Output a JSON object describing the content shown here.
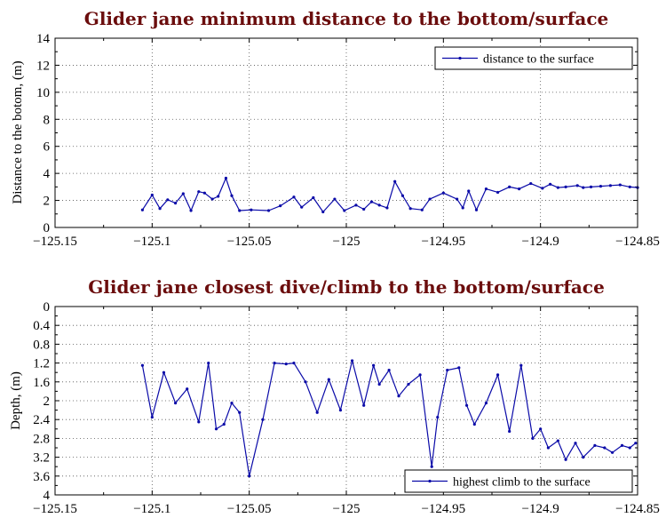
{
  "chart_data": [
    {
      "type": "line",
      "title": "Glider jane minimum distance to the bottom/surface",
      "ylabel": "Distance to the botom, (m)",
      "xlabel": "",
      "xlim": [
        -125.15,
        -124.85
      ],
      "ylim": [
        0,
        14
      ],
      "y_inverted": false,
      "grid": true,
      "legend_position": "top-right",
      "x_ticks": [
        -125.15,
        -125.1,
        -125.05,
        -125,
        -124.95,
        -124.9,
        -124.85
      ],
      "x_tick_labels": [
        "−125.15",
        "−125.1",
        "−125.05",
        "−125",
        "−124.95",
        "−124.9",
        "−124.85"
      ],
      "y_ticks": [
        0,
        2,
        4,
        6,
        8,
        10,
        12,
        14
      ],
      "y_tick_labels": [
        "0",
        "2",
        "4",
        "6",
        "8",
        "10",
        "12",
        "14"
      ],
      "series": [
        {
          "name": "distance to the surface",
          "color": "#0a0aa8",
          "x": [
            -125.105,
            -125.1,
            -125.096,
            -125.092,
            -125.088,
            -125.084,
            -125.08,
            -125.076,
            -125.073,
            -125.069,
            -125.066,
            -125.062,
            -125.059,
            -125.055,
            -125.049,
            -125.04,
            -125.034,
            -125.027,
            -125.023,
            -125.017,
            -125.012,
            -125.006,
            -125.001,
            -124.995,
            -124.991,
            -124.987,
            -124.983,
            -124.979,
            -124.975,
            -124.971,
            -124.967,
            -124.961,
            -124.957,
            -124.95,
            -124.943,
            -124.94,
            -124.937,
            -124.933,
            -124.928,
            -124.922,
            -124.916,
            -124.911,
            -124.905,
            -124.899,
            -124.895,
            -124.891,
            -124.887,
            -124.881,
            -124.878,
            -124.874,
            -124.869,
            -124.864,
            -124.859,
            -124.854,
            -124.85
          ],
          "y": [
            1.3,
            2.4,
            1.4,
            2.05,
            1.8,
            2.5,
            1.25,
            2.65,
            2.55,
            2.1,
            2.3,
            3.65,
            2.35,
            1.25,
            1.3,
            1.25,
            1.6,
            2.25,
            1.5,
            2.2,
            1.15,
            2.1,
            1.25,
            1.65,
            1.35,
            1.9,
            1.65,
            1.45,
            3.4,
            2.35,
            1.4,
            1.3,
            2.1,
            2.55,
            2.1,
            1.45,
            2.7,
            1.3,
            2.85,
            2.6,
            3.0,
            2.85,
            3.25,
            2.9,
            3.2,
            2.95,
            3.0,
            3.1,
            2.95,
            3.0,
            3.05,
            3.1,
            3.15,
            3.0,
            2.95
          ]
        }
      ]
    },
    {
      "type": "line",
      "title": "Glider jane closest dive/climb to the bottom/surface",
      "ylabel": "Depth, (m)",
      "xlabel": "",
      "xlim": [
        -125.15,
        -124.85
      ],
      "ylim": [
        0,
        4
      ],
      "y_inverted": true,
      "grid": true,
      "legend_position": "bottom-right",
      "x_ticks": [
        -125.15,
        -125.1,
        -125.05,
        -125,
        -124.95,
        -124.9,
        -124.85
      ],
      "x_tick_labels": [
        "−125.15",
        "−125.1",
        "−125.05",
        "−125",
        "−124.95",
        "−124.9",
        "−124.85"
      ],
      "y_ticks": [
        0,
        0.4,
        0.8,
        1.2,
        1.6,
        2,
        2.4,
        2.8,
        3.2,
        3.6,
        4
      ],
      "y_tick_labels": [
        "0",
        "0.4",
        "0.8",
        "1.2",
        "1.6",
        "2",
        "2.4",
        "2.8",
        "3.2",
        "3.6",
        "4"
      ],
      "series": [
        {
          "name": "highest climb to the surface",
          "color": "#0a0aa8",
          "x": [
            -125.105,
            -125.1,
            -125.094,
            -125.088,
            -125.082,
            -125.076,
            -125.071,
            -125.067,
            -125.063,
            -125.059,
            -125.055,
            -125.05,
            -125.043,
            -125.037,
            -125.031,
            -125.027,
            -125.021,
            -125.015,
            -125.009,
            -125.003,
            -124.997,
            -124.991,
            -124.986,
            -124.983,
            -124.978,
            -124.973,
            -124.968,
            -124.962,
            -124.956,
            -124.953,
            -124.948,
            -124.942,
            -124.938,
            -124.934,
            -124.928,
            -124.922,
            -124.916,
            -124.91,
            -124.904,
            -124.9,
            -124.896,
            -124.891,
            -124.887,
            -124.882,
            -124.878,
            -124.872,
            -124.867,
            -124.863,
            -124.858,
            -124.854,
            -124.851
          ],
          "y": [
            1.25,
            2.35,
            1.4,
            2.05,
            1.75,
            2.45,
            1.2,
            2.6,
            2.5,
            2.05,
            2.25,
            3.6,
            2.4,
            1.2,
            1.22,
            1.2,
            1.6,
            2.25,
            1.55,
            2.2,
            1.15,
            2.1,
            1.25,
            1.65,
            1.35,
            1.9,
            1.65,
            1.45,
            3.4,
            2.35,
            1.35,
            1.3,
            2.1,
            2.5,
            2.05,
            1.45,
            2.65,
            1.25,
            2.8,
            2.6,
            3.0,
            2.85,
            3.25,
            2.9,
            3.2,
            2.95,
            3.0,
            3.1,
            2.95,
            3.0,
            2.9
          ]
        }
      ]
    }
  ]
}
